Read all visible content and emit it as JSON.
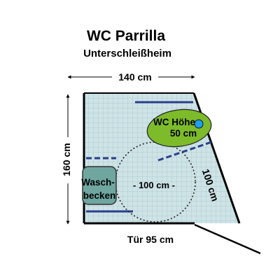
{
  "title": "WC Parrilla",
  "subtitle": "Unterschleißheim",
  "dimensions": {
    "width_label": "140 cm",
    "height_label": "160 cm",
    "diagonal_label": "100 cm",
    "turning_circle_label": "- 100 cm -",
    "door_label": "Tür 95 cm"
  },
  "fixtures": {
    "toilet_line1": "WC Höhe",
    "toilet_line2": "50 cm",
    "sink_line1": "Wasch-",
    "sink_line2": "becken"
  },
  "colors": {
    "floor_tiles": "#cfe3e6",
    "tile_grid": "#a9ccd3",
    "wall": "#000000",
    "grab_bar": "#2a3f8c",
    "toilet": "#7dbb2b",
    "sink": "#6fa6a0",
    "flush_button": "#1ea0e8"
  }
}
